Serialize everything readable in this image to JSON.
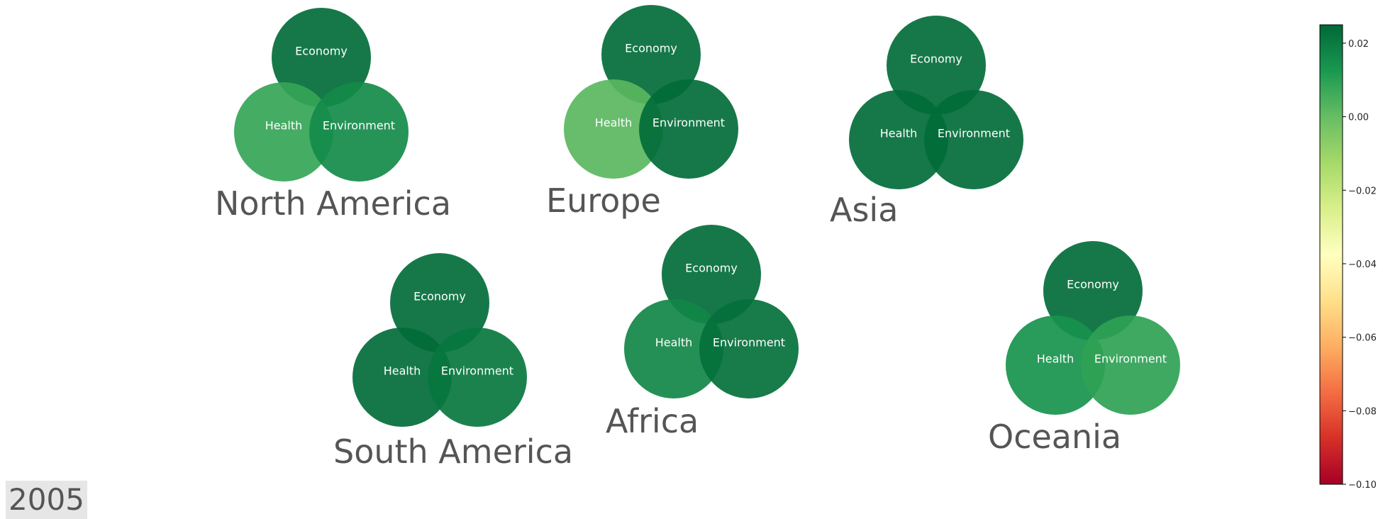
{
  "year_label": "2005",
  "chart_data": {
    "type": "venn-bubble",
    "title": "",
    "year": "2005",
    "colormap": "RdYlGn",
    "color_range": [
      -0.1,
      0.025
    ],
    "colorbar_ticks": [
      "0.02",
      "0.00",
      "−0.02",
      "−0.04",
      "−0.06",
      "−0.08",
      "−0.10"
    ],
    "colorbar_tick_values": [
      0.02,
      0.0,
      -0.02,
      -0.04,
      -0.06,
      -0.08,
      -0.1
    ],
    "categories": [
      "Economy",
      "Health",
      "Environment"
    ],
    "regions": [
      {
        "name": "North America",
        "values": {
          "Economy": 0.024,
          "Health": 0.008,
          "Environment": 0.016
        }
      },
      {
        "name": "Europe",
        "values": {
          "Economy": 0.024,
          "Health": 0.002,
          "Environment": 0.024
        }
      },
      {
        "name": "Asia",
        "values": {
          "Economy": 0.024,
          "Health": 0.024,
          "Environment": 0.024
        }
      },
      {
        "name": "South America",
        "values": {
          "Economy": 0.024,
          "Health": 0.024,
          "Environment": 0.021
        }
      },
      {
        "name": "Africa",
        "values": {
          "Economy": 0.024,
          "Health": 0.017,
          "Environment": 0.023
        }
      },
      {
        "name": "Oceania",
        "values": {
          "Economy": 0.024,
          "Health": 0.014,
          "Environment": 0.009
        }
      }
    ]
  }
}
